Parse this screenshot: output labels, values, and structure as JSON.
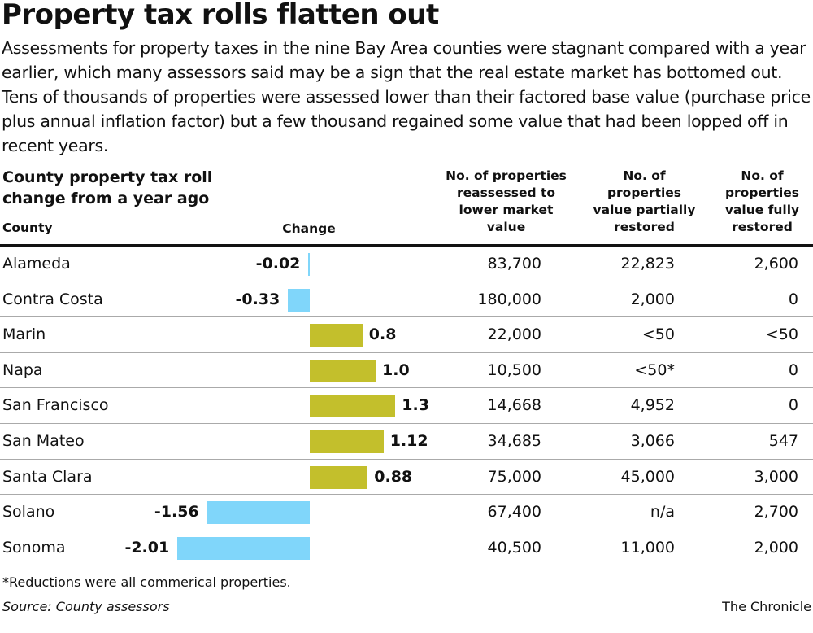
{
  "title": "Property tax rolls flatten out",
  "subtitle": "Assessments for property taxes in the nine Bay Area counties were stagnant compared with a year earlier, which many assessors said may be a sign that the real estate market has bottomed out. Tens of thousands of properties were assessed lower than their factored base value (purchase price plus annual inflation factor) but a few thousand regained some value that had been lopped off in recent years.",
  "chart_data": {
    "type": "bar",
    "title": "County property tax roll change from a year ago",
    "columns": [
      "County",
      "Change",
      "No. of properties reassessed to lower market value",
      "No. of properties value partially restored",
      "No. of properties value fully restored"
    ],
    "categories": [
      "Alameda",
      "Contra Costa",
      "Marin",
      "Napa",
      "San Francisco",
      "San Mateo",
      "Santa Clara",
      "Solano",
      "Sonoma"
    ],
    "values": [
      -0.02,
      -0.33,
      0.8,
      1.0,
      1.3,
      1.12,
      0.88,
      -1.56,
      -2.01
    ],
    "value_labels": [
      "-0.02",
      "-0.33",
      "0.8",
      "1.0",
      "1.3",
      "1.12",
      "0.88",
      "-1.56",
      "-2.01"
    ],
    "reassessed_lower": [
      "83,700",
      "180,000",
      "22,000",
      "10,500",
      "14,668",
      "34,685",
      "75,000",
      "67,400",
      "40,500"
    ],
    "partially_restored": [
      "22,823",
      "2,000",
      "<50",
      "<50*",
      "4,952",
      "3,066",
      "45,000",
      "n/a",
      "11,000"
    ],
    "fully_restored": [
      "2,600",
      "0",
      "<50",
      "0",
      "0",
      "547",
      "3,000",
      "2,700",
      "2,000"
    ],
    "colors": {
      "negative": "#80d6fa",
      "positive": "#c3bf2c"
    }
  },
  "footnote": "*Reductions were all commerical properties.",
  "source": "Source: County assessors",
  "credit": "The Chronicle"
}
